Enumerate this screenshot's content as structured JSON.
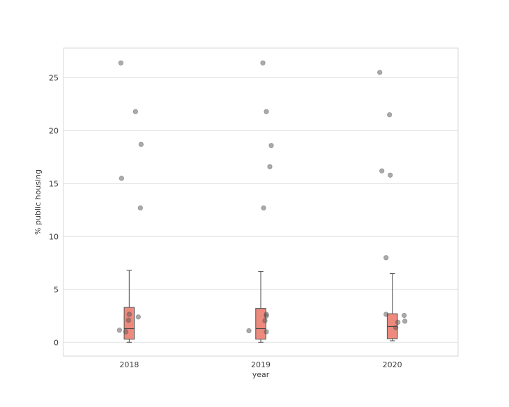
{
  "figure": {
    "background": "#ffffff"
  },
  "chart_data": {
    "type": "boxplot",
    "subtype": "boxplot-with-strip-points",
    "title": "",
    "xlabel": "year",
    "ylabel": "% public housing",
    "categories": [
      "2018",
      "2019",
      "2020"
    ],
    "ylim": [
      -1.3,
      27.8
    ],
    "yticks": [
      0,
      5,
      10,
      15,
      20,
      25
    ],
    "grid": "horizontal",
    "legend": "none",
    "boxes": [
      {
        "category": "2018",
        "whisker_low": 0.0,
        "q1": 0.3,
        "median": 1.3,
        "q3": 3.3,
        "whisker_high": 6.8
      },
      {
        "category": "2019",
        "whisker_low": 0.0,
        "q1": 0.3,
        "median": 1.3,
        "q3": 3.2,
        "whisker_high": 6.7
      },
      {
        "category": "2020",
        "whisker_low": 0.15,
        "q1": 0.35,
        "median": 1.5,
        "q3": 2.7,
        "whisker_high": 6.5
      }
    ],
    "points": [
      {
        "category": "2018",
        "values": [
          [
            26.4,
            -12
          ],
          [
            21.8,
            9
          ],
          [
            18.7,
            17
          ],
          [
            15.5,
            -11
          ],
          [
            12.7,
            16
          ],
          [
            2.65,
            0
          ],
          [
            2.4,
            13
          ],
          [
            2.1,
            -1
          ],
          [
            1.15,
            -14
          ],
          [
            1.0,
            -5
          ]
        ]
      },
      {
        "category": "2019",
        "values": [
          [
            26.4,
            3
          ],
          [
            21.8,
            8
          ],
          [
            18.6,
            15
          ],
          [
            16.6,
            13
          ],
          [
            12.7,
            4
          ],
          [
            2.65,
            8
          ],
          [
            2.5,
            8
          ],
          [
            2.05,
            6
          ],
          [
            1.1,
            -17
          ],
          [
            1.0,
            8
          ]
        ]
      },
      {
        "category": "2020",
        "values": [
          [
            25.5,
            -18
          ],
          [
            21.5,
            -4
          ],
          [
            16.2,
            -15
          ],
          [
            15.8,
            -3
          ],
          [
            8.0,
            -9
          ],
          [
            2.65,
            -9
          ],
          [
            2.55,
            17
          ],
          [
            2.0,
            18
          ],
          [
            1.9,
            8
          ],
          [
            1.4,
            5
          ]
        ]
      }
    ],
    "colors": {
      "box_fill": "#ee8a7d",
      "box_edge": "#5b5b5b",
      "median_line": "#4a4a4a",
      "whisker": "#5b5b5b",
      "point_fill": "#555555",
      "point_edge": "#3c3c3c",
      "gridline": "#e4e4e4",
      "spine": "#d7d7d7",
      "text": "#3c3c3c"
    }
  }
}
